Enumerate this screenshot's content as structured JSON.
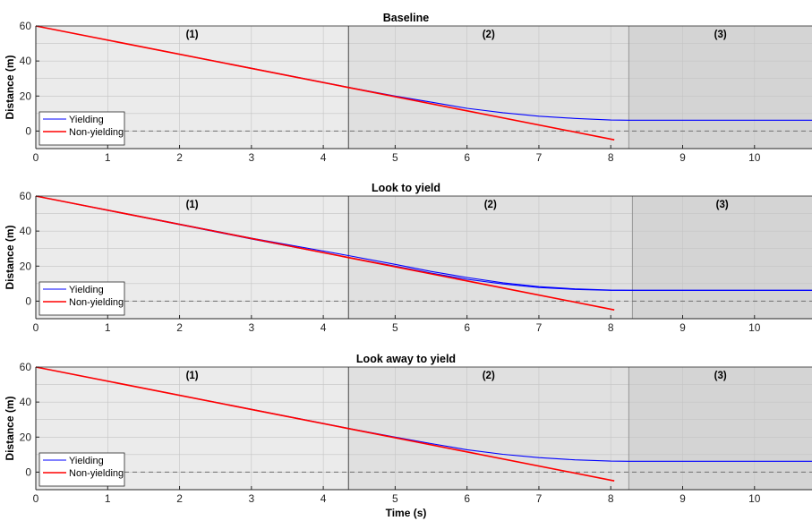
{
  "chart_data": [
    {
      "type": "line",
      "title": "Baseline",
      "xlabel": "",
      "ylabel": "Distance (m)",
      "xlim": [
        0,
        10.8
      ],
      "ylim": [
        -10,
        60
      ],
      "xticks": [
        0,
        1,
        2,
        3,
        4,
        5,
        6,
        7,
        8,
        9,
        10
      ],
      "yticks": [
        0,
        20,
        40,
        60
      ],
      "grid": true,
      "legend": "bottom-left",
      "reference_line_y": 0,
      "phases": [
        {
          "label": "(1)",
          "x_start": 0,
          "x_end": 4.35,
          "shade": "#ebebeb"
        },
        {
          "label": "(2)",
          "x_start": 4.35,
          "x_end": 8.25,
          "shade": "#e0e0e0"
        },
        {
          "label": "(3)",
          "x_start": 8.25,
          "x_end": 10.8,
          "shade": "#d4d4d4"
        }
      ],
      "series": [
        {
          "name": "Yielding",
          "color": "#0000ff",
          "x": [
            0,
            4.35,
            5,
            5.5,
            6,
            6.5,
            7,
            7.5,
            8,
            8.25,
            10.8
          ],
          "y": [
            60,
            25,
            20,
            16.5,
            13,
            10.5,
            8.5,
            7.2,
            6.3,
            6.2,
            6.2
          ]
        },
        {
          "name": "Non-yielding",
          "color": "#ff0000",
          "x": [
            0,
            8.05
          ],
          "y": [
            60,
            -5
          ]
        }
      ]
    },
    {
      "type": "line",
      "title": "Look to yield",
      "xlabel": "",
      "ylabel": "Distance (m)",
      "xlim": [
        0,
        10.8
      ],
      "ylim": [
        -10,
        60
      ],
      "xticks": [
        0,
        1,
        2,
        3,
        4,
        5,
        6,
        7,
        8,
        9,
        10
      ],
      "yticks": [
        0,
        20,
        40,
        60
      ],
      "grid": true,
      "legend": "bottom-left",
      "reference_line_y": 0,
      "phases": [
        {
          "label": "(1)",
          "x_start": 0,
          "x_end": 4.35,
          "shade": "#ebebeb"
        },
        {
          "label": "(2)",
          "x_start": 4.35,
          "x_end": 8.3,
          "shade": "#e0e0e0"
        },
        {
          "label": "(3)",
          "x_start": 8.3,
          "x_end": 10.8,
          "shade": "#d4d4d4"
        }
      ],
      "series": [
        {
          "name": "Yielding",
          "color": "#0000ff",
          "x": [
            0,
            3,
            4.35,
            5,
            5.5,
            6,
            6.5,
            7,
            7.5,
            8,
            8.3,
            10.8
          ],
          "y": [
            60,
            36,
            26,
            21,
            17,
            13.5,
            10.5,
            8.3,
            7,
            6.3,
            6.2,
            6.2
          ]
        },
        {
          "name": "",
          "color": "#0000ff",
          "x": [
            0,
            3,
            4.35,
            5,
            5.5,
            6,
            6.5,
            7,
            7.5,
            8,
            8.3,
            10.8
          ],
          "y": [
            60,
            35.5,
            25,
            20,
            16,
            12.5,
            9.8,
            7.8,
            6.7,
            6.2,
            6.2,
            6.2
          ]
        },
        {
          "name": "Non-yielding",
          "color": "#ff0000",
          "x": [
            0,
            8.05
          ],
          "y": [
            60,
            -5
          ]
        }
      ]
    },
    {
      "type": "line",
      "title": "Look away to yield",
      "xlabel": "Time (s)",
      "ylabel": "Distance (m)",
      "xlim": [
        0,
        10.8
      ],
      "ylim": [
        -10,
        60
      ],
      "xticks": [
        0,
        1,
        2,
        3,
        4,
        5,
        6,
        7,
        8,
        9,
        10
      ],
      "yticks": [
        0,
        20,
        40,
        60
      ],
      "grid": true,
      "legend": "bottom-left",
      "reference_line_y": 0,
      "phases": [
        {
          "label": "(1)",
          "x_start": 0,
          "x_end": 4.35,
          "shade": "#ebebeb"
        },
        {
          "label": "(2)",
          "x_start": 4.35,
          "x_end": 8.25,
          "shade": "#e0e0e0"
        },
        {
          "label": "(3)",
          "x_start": 8.25,
          "x_end": 10.8,
          "shade": "#d4d4d4"
        }
      ],
      "series": [
        {
          "name": "Yielding",
          "color": "#0000ff",
          "x": [
            0,
            4.35,
            5,
            5.5,
            6,
            6.5,
            7,
            7.5,
            8,
            8.25,
            10.8
          ],
          "y": [
            60,
            25,
            20,
            16.3,
            12.8,
            10.2,
            8.3,
            7,
            6.3,
            6.2,
            6.2
          ]
        },
        {
          "name": "Non-yielding",
          "color": "#ff0000",
          "x": [
            0,
            8.05
          ],
          "y": [
            60,
            -5
          ]
        }
      ]
    }
  ]
}
